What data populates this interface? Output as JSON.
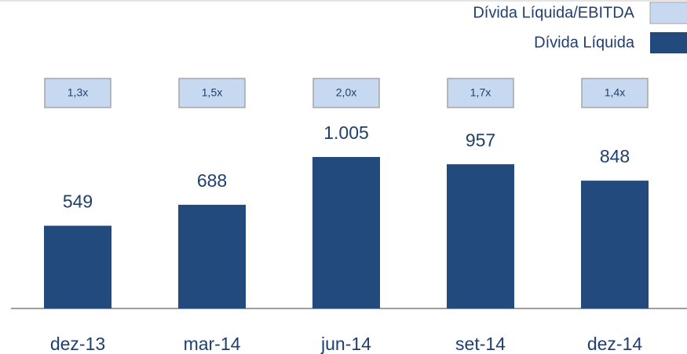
{
  "chart_data": {
    "type": "bar",
    "categories": [
      "dez-13",
      "mar-14",
      "jun-14",
      "set-14",
      "dez-14"
    ],
    "series": [
      {
        "name": "Dívida Líquida/EBITDA",
        "type": "box",
        "color": "#c6d9f1",
        "values": [
          1.3,
          1.5,
          2.0,
          1.7,
          1.4
        ],
        "value_labels": [
          "1,3x",
          "1,5x",
          "2,0x",
          "1,7x",
          "1,4x"
        ]
      },
      {
        "name": "Dívida Líquida",
        "type": "bar",
        "color": "#234a7c",
        "values": [
          549,
          688,
          1005,
          957,
          848
        ],
        "value_labels": [
          "549",
          "688",
          "1.005",
          "957",
          "848"
        ]
      }
    ]
  }
}
